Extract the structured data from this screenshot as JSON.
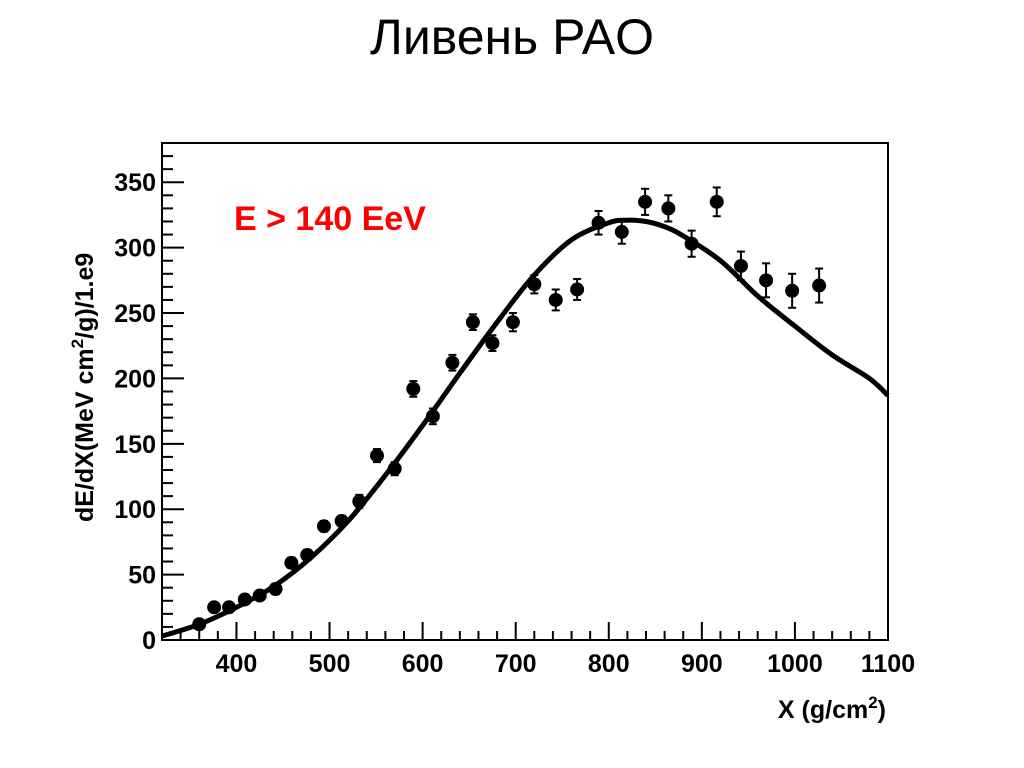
{
  "slide": {
    "title": "Ливень PAO"
  },
  "chart_data": {
    "type": "scatter",
    "title": "",
    "xlabel": "X (g/cm",
    "xlabel_sup": "2",
    "xlabel_end": ")",
    "ylabel_parts": [
      "dE/dX(MeV cm",
      "2",
      "/g)/1.e9"
    ],
    "xlim": [
      320,
      1100
    ],
    "ylim": [
      0,
      380
    ],
    "x_ticks": [
      400,
      500,
      600,
      700,
      800,
      900,
      1000,
      1100
    ],
    "y_ticks": [
      0,
      50,
      100,
      150,
      200,
      250,
      300,
      350
    ],
    "grid": false,
    "annotation": {
      "text": "E > 140 EeV",
      "color": "#ff0000"
    },
    "points": [
      {
        "x": 360,
        "y": 12,
        "err": 3
      },
      {
        "x": 376,
        "y": 25,
        "err": 3
      },
      {
        "x": 392,
        "y": 25,
        "err": 3
      },
      {
        "x": 409,
        "y": 31,
        "err": 3
      },
      {
        "x": 425,
        "y": 34,
        "err": 3
      },
      {
        "x": 442,
        "y": 39,
        "err": 4
      },
      {
        "x": 459,
        "y": 59,
        "err": 4
      },
      {
        "x": 476,
        "y": 65,
        "err": 4
      },
      {
        "x": 494,
        "y": 87,
        "err": 4
      },
      {
        "x": 513,
        "y": 91,
        "err": 4
      },
      {
        "x": 532,
        "y": 106,
        "err": 5
      },
      {
        "x": 551,
        "y": 141,
        "err": 5
      },
      {
        "x": 570,
        "y": 131,
        "err": 5
      },
      {
        "x": 590,
        "y": 192,
        "err": 6
      },
      {
        "x": 611,
        "y": 171,
        "err": 6
      },
      {
        "x": 632,
        "y": 212,
        "err": 6
      },
      {
        "x": 654,
        "y": 243,
        "err": 6
      },
      {
        "x": 675,
        "y": 227,
        "err": 6
      },
      {
        "x": 697,
        "y": 243,
        "err": 7
      },
      {
        "x": 720,
        "y": 272,
        "err": 7
      },
      {
        "x": 743,
        "y": 260,
        "err": 8
      },
      {
        "x": 766,
        "y": 268,
        "err": 8
      },
      {
        "x": 789,
        "y": 319,
        "err": 9
      },
      {
        "x": 814,
        "y": 312,
        "err": 9
      },
      {
        "x": 839,
        "y": 335,
        "err": 10
      },
      {
        "x": 864,
        "y": 330,
        "err": 10
      },
      {
        "x": 889,
        "y": 303,
        "err": 10
      },
      {
        "x": 916,
        "y": 335,
        "err": 11
      },
      {
        "x": 942,
        "y": 286,
        "err": 11
      },
      {
        "x": 969,
        "y": 275,
        "err": 13
      },
      {
        "x": 997,
        "y": 267,
        "err": 13
      },
      {
        "x": 1026,
        "y": 271,
        "err": 13
      }
    ],
    "fit_curve": {
      "x": [
        320,
        360,
        400,
        440,
        480,
        520,
        560,
        600,
        640,
        680,
        720,
        760,
        800,
        820,
        840,
        860,
        880,
        920,
        960,
        1000,
        1040,
        1080,
        1100
      ],
      "y": [
        3,
        12,
        25,
        41,
        63,
        91,
        126,
        164,
        204,
        243,
        279,
        306,
        319,
        321,
        320,
        316,
        309,
        290,
        263,
        240,
        218,
        200,
        187
      ]
    }
  }
}
